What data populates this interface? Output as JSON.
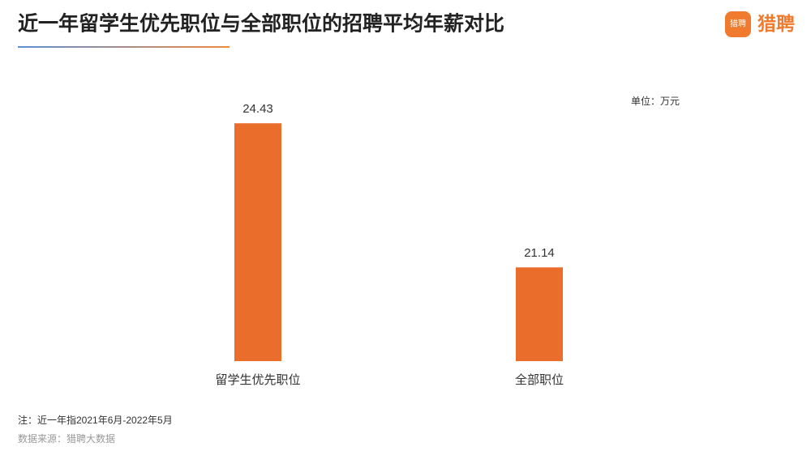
{
  "logo": {
    "icon": "猎聘",
    "text": "猎聘"
  },
  "chart_data": {
    "type": "bar",
    "title": "近一年留学生优先职位与全部职位的招聘平均年薪对比",
    "unit": "单位：万元",
    "categories": [
      "留学生优先职位",
      "全部职位"
    ],
    "values": [
      24.43,
      21.14
    ],
    "color": "#ea6d2c",
    "ylim": [
      19,
      25
    ],
    "note": "注：近一年指2021年6月-2022年5月",
    "source": "数据来源：猎聘大数据"
  }
}
